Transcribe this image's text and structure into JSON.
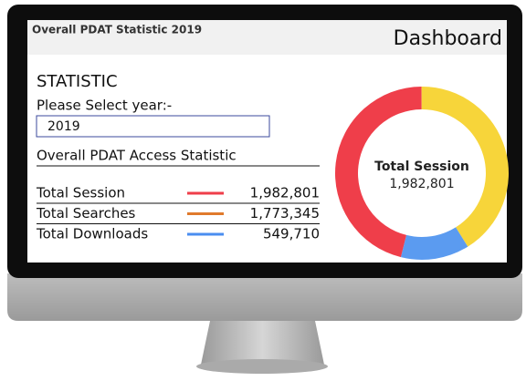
{
  "header": {
    "title": "Overall PDAT Statistic 2019",
    "page": "Dashboard"
  },
  "section_title": "STATISTIC",
  "select_label": "Please Select year:-",
  "select_value": "2019",
  "stats_title": "Overall PDAT Access Statistic",
  "stats": [
    {
      "label": "Total Session",
      "value": 1982801,
      "value_label": "1,982,801",
      "color": "#ef3e4a",
      "donut_color": "#ef3e4a"
    },
    {
      "label": "Total Searches",
      "value": 1773345,
      "value_label": "1,773,345",
      "color": "#e07a2c",
      "donut_color": "#f7d53a"
    },
    {
      "label": "Total Downloads",
      "value": 549710,
      "value_label": "549,710",
      "color": "#4a8ef0",
      "donut_color": "#5b9bf0"
    }
  ]
}
